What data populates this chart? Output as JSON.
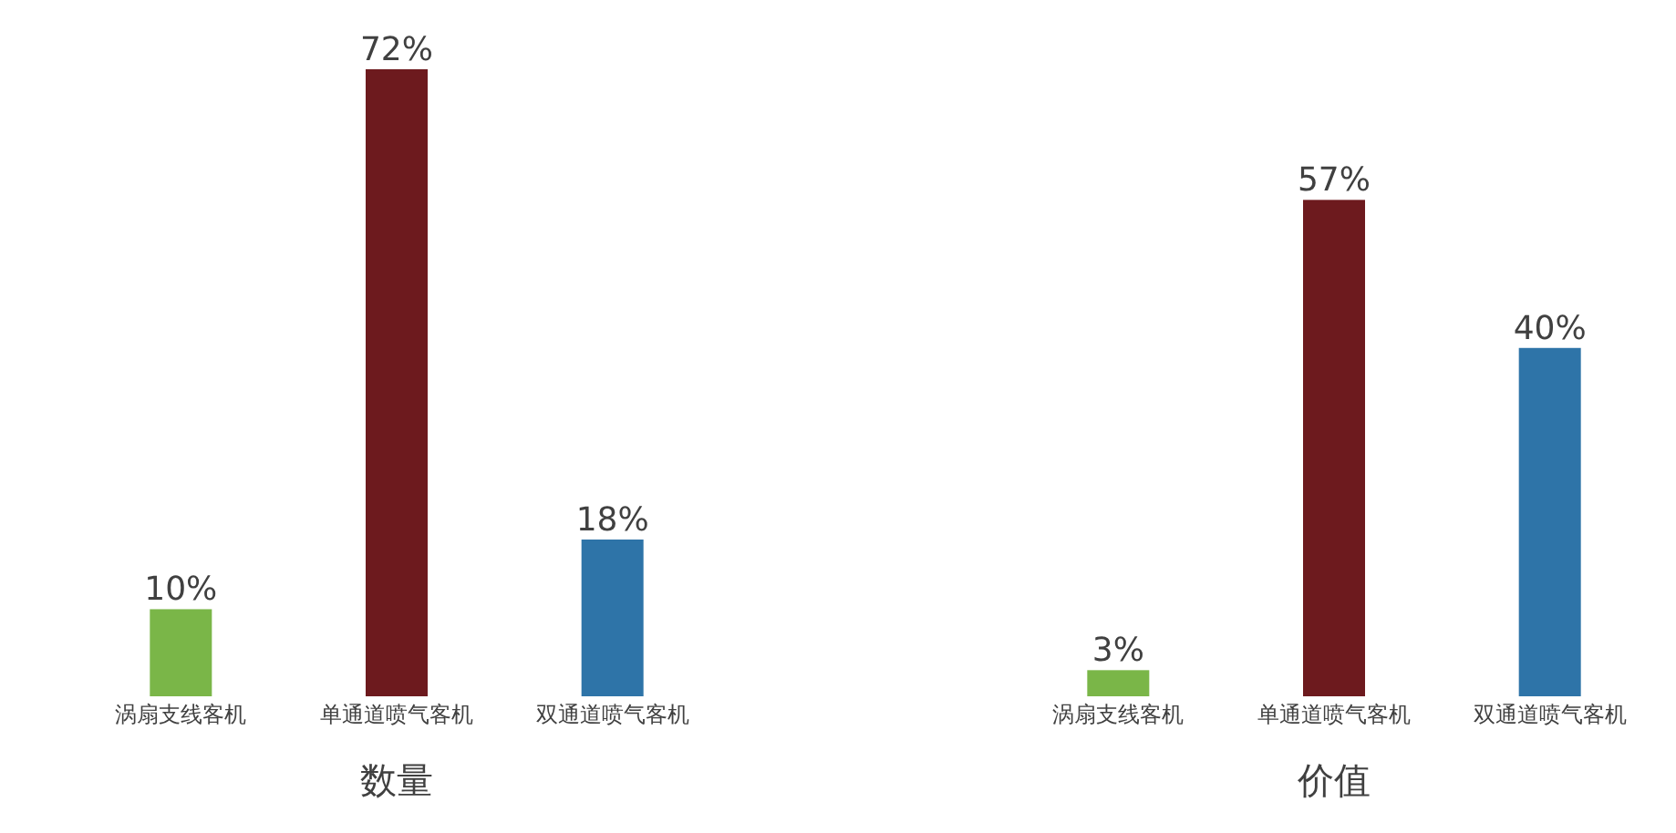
{
  "chart_data": [
    {
      "type": "bar",
      "xlabel": "数量",
      "categories": [
        "涡扇支线客机",
        "单通道喷气客机",
        "双通道喷气客机"
      ],
      "values": [
        10,
        72,
        18
      ],
      "value_labels": [
        "10%",
        "72%",
        "18%"
      ],
      "colors": [
        "#7ab648",
        "#6d1a1e",
        "#2e74a8"
      ]
    },
    {
      "type": "bar",
      "xlabel": "价值",
      "categories": [
        "涡扇支线客机",
        "单通道喷气客机",
        "双通道喷气客机"
      ],
      "values": [
        3,
        57,
        40
      ],
      "value_labels": [
        "3%",
        "57%",
        "40%"
      ],
      "colors": [
        "#7ab648",
        "#6d1a1e",
        "#2e74a8"
      ]
    }
  ]
}
